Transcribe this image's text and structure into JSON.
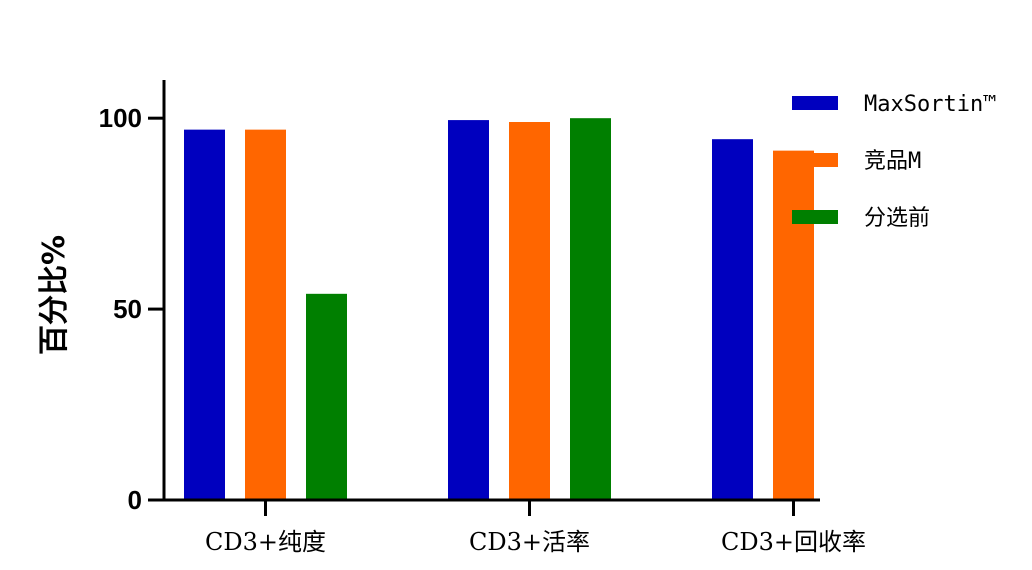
{
  "chart_data": {
    "type": "bar",
    "title": "",
    "xlabel": "",
    "ylabel": "百分比%",
    "ylim": [
      0,
      110
    ],
    "yticks": [
      0,
      50,
      100
    ],
    "categories": [
      "CD3+纯度",
      "CD3+活率",
      "CD3+回收率"
    ],
    "series": [
      {
        "name": "MaxSortin™",
        "color": "#0000bf",
        "values": [
          97,
          99.5,
          94.5
        ]
      },
      {
        "name": "竞品M",
        "color": "#ff6600",
        "values": [
          97,
          99,
          91.5
        ]
      },
      {
        "name": "分选前",
        "color": "#007f00",
        "values": [
          54,
          100,
          null
        ]
      }
    ],
    "grid": false,
    "legend": "top-right"
  }
}
